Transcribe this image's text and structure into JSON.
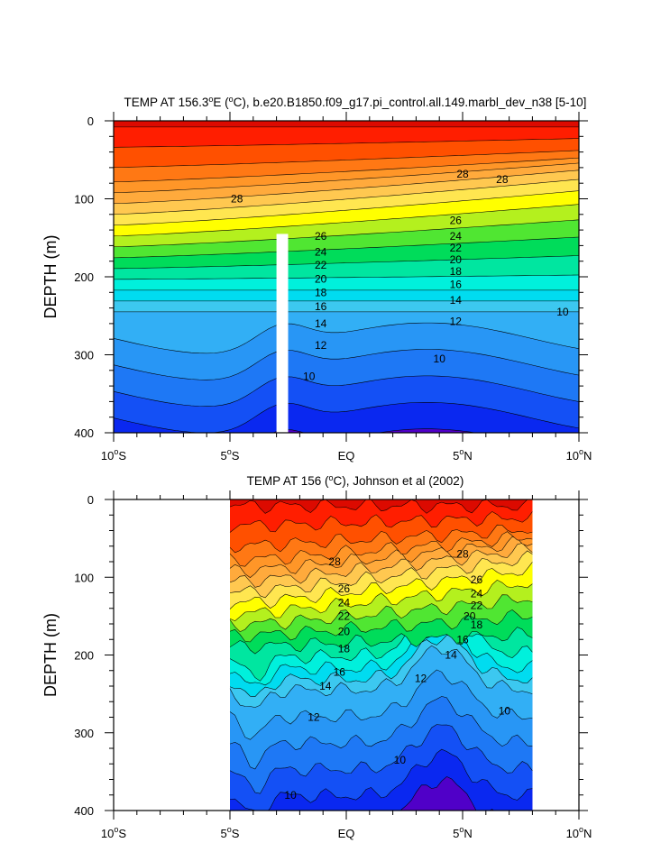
{
  "chart_data": [
    {
      "type": "contour",
      "title": "TEMP AT 156.3°E (°C), b.e20.B1850.f09_g17.pi_control.all.149.marbl_dev_n38 [5-10]",
      "title_parts": {
        "prefix": "TEMP AT 156.3",
        "deg1": "o",
        "mid1": "E (",
        "deg2": "o",
        "suffix": "C), b.e20.B1850.f09_g17.pi_control.all.149.marbl_dev_n38 [5-10]"
      },
      "xlabel": "",
      "ylabel": "DEPTH (m)",
      "xlim": [
        -10,
        10
      ],
      "ylim": [
        400,
        0
      ],
      "x_ticks": [
        {
          "value": -10,
          "num": "10",
          "deg": "o",
          "hemi": "S"
        },
        {
          "value": -5,
          "num": "5",
          "deg": "o",
          "hemi": "S"
        },
        {
          "value": 0,
          "num": "EQ",
          "deg": "",
          "hemi": ""
        },
        {
          "value": 5,
          "num": "5",
          "deg": "o",
          "hemi": "N"
        },
        {
          "value": 10,
          "num": "10",
          "deg": "o",
          "hemi": "N"
        }
      ],
      "y_ticks": [
        0,
        100,
        200,
        300,
        400
      ],
      "data_mask": {
        "x_range": [
          -3.0,
          -2.5
        ],
        "depth_range": [
          145,
          400
        ]
      },
      "contour_labels": [
        {
          "x": 5.0,
          "depth": 68,
          "text": "28"
        },
        {
          "x": 6.7,
          "depth": 75,
          "text": "28"
        },
        {
          "x": -4.7,
          "depth": 100,
          "text": "28"
        },
        {
          "x": -1.1,
          "depth": 148,
          "text": "26"
        },
        {
          "x": 4.7,
          "depth": 128,
          "text": "26"
        },
        {
          "x": -1.1,
          "depth": 168,
          "text": "24"
        },
        {
          "x": 4.7,
          "depth": 148,
          "text": "24"
        },
        {
          "x": -1.1,
          "depth": 185,
          "text": "22"
        },
        {
          "x": 4.7,
          "depth": 163,
          "text": "22"
        },
        {
          "x": -1.1,
          "depth": 203,
          "text": "20"
        },
        {
          "x": 4.7,
          "depth": 178,
          "text": "20"
        },
        {
          "x": -1.1,
          "depth": 220,
          "text": "18"
        },
        {
          "x": 4.7,
          "depth": 193,
          "text": "18"
        },
        {
          "x": -1.1,
          "depth": 238,
          "text": "16"
        },
        {
          "x": 4.7,
          "depth": 210,
          "text": "16"
        },
        {
          "x": -1.1,
          "depth": 260,
          "text": "14"
        },
        {
          "x": 4.7,
          "depth": 230,
          "text": "14"
        },
        {
          "x": -1.1,
          "depth": 288,
          "text": "12"
        },
        {
          "x": 4.7,
          "depth": 257,
          "text": "12"
        },
        {
          "x": 9.3,
          "depth": 245,
          "text": "10"
        },
        {
          "x": -1.6,
          "depth": 328,
          "text": "10"
        },
        {
          "x": 4.0,
          "depth": 305,
          "text": "10"
        }
      ]
    },
    {
      "type": "contour",
      "title": "TEMP AT 156 (°C), Johnson et al (2002)",
      "title_parts": {
        "prefix": "TEMP AT 156 (",
        "deg1": "o",
        "suffix": "C), Johnson et al (2002)"
      },
      "xlabel": "",
      "ylabel": "DEPTH (m)",
      "xlim": [
        -10,
        10
      ],
      "ylim": [
        400,
        0
      ],
      "data_x_range": [
        -5,
        8
      ],
      "x_ticks": [
        {
          "value": -10,
          "num": "10",
          "deg": "o",
          "hemi": "S"
        },
        {
          "value": -5,
          "num": "5",
          "deg": "o",
          "hemi": "S"
        },
        {
          "value": 0,
          "num": "EQ",
          "deg": "",
          "hemi": ""
        },
        {
          "value": 5,
          "num": "5",
          "deg": "o",
          "hemi": "N"
        },
        {
          "value": 10,
          "num": "10",
          "deg": "o",
          "hemi": "N"
        }
      ],
      "y_ticks": [
        0,
        100,
        200,
        300,
        400
      ],
      "contour_labels": [
        {
          "x": -0.5,
          "depth": 80,
          "text": "28"
        },
        {
          "x": 5.0,
          "depth": 70,
          "text": "28"
        },
        {
          "x": -0.1,
          "depth": 115,
          "text": "26"
        },
        {
          "x": 5.6,
          "depth": 103,
          "text": "26"
        },
        {
          "x": -0.1,
          "depth": 133,
          "text": "24"
        },
        {
          "x": 5.6,
          "depth": 121,
          "text": "24"
        },
        {
          "x": -0.1,
          "depth": 150,
          "text": "22"
        },
        {
          "x": 5.6,
          "depth": 136,
          "text": "22"
        },
        {
          "x": -0.1,
          "depth": 170,
          "text": "20"
        },
        {
          "x": 5.3,
          "depth": 150,
          "text": "20"
        },
        {
          "x": -0.1,
          "depth": 192,
          "text": "18"
        },
        {
          "x": 5.6,
          "depth": 161,
          "text": "18"
        },
        {
          "x": 5.0,
          "depth": 180,
          "text": "16"
        },
        {
          "x": -0.3,
          "depth": 222,
          "text": "16"
        },
        {
          "x": 4.5,
          "depth": 200,
          "text": "14"
        },
        {
          "x": -0.9,
          "depth": 240,
          "text": "14"
        },
        {
          "x": 3.2,
          "depth": 230,
          "text": "12"
        },
        {
          "x": -1.4,
          "depth": 280,
          "text": "12"
        },
        {
          "x": 6.8,
          "depth": 272,
          "text": "10"
        },
        {
          "x": 2.3,
          "depth": 335,
          "text": "10"
        },
        {
          "x": -2.4,
          "depth": 380,
          "text": "10"
        }
      ]
    }
  ]
}
